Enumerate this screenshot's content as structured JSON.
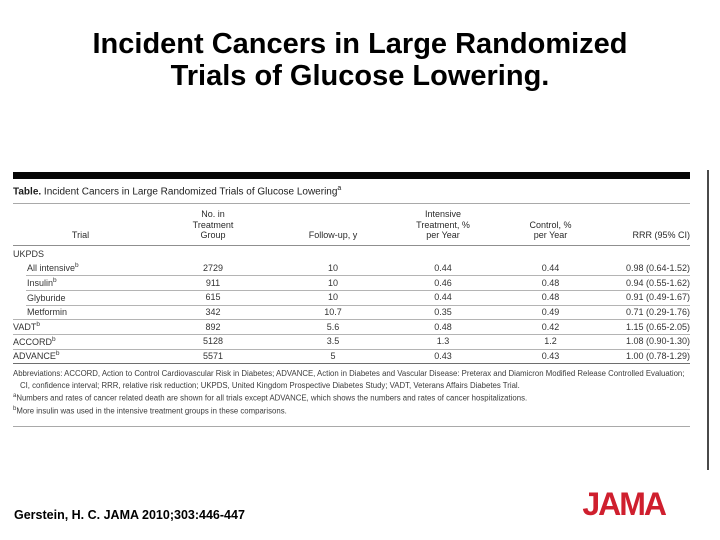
{
  "slide": {
    "title": "Incident Cancers in Large Randomized\nTrials of Glucose Lowering.",
    "citation": "Gerstein, H. C. JAMA 2010;303:446-447",
    "logo_text": "JAMA",
    "logo_color": "#cf1f2e"
  },
  "table": {
    "caption_label": "Table.",
    "caption_text": " Incident Cancers in Large Randomized Trials of Glucose Lowering",
    "caption_sup": "a",
    "columns": [
      "Trial",
      "No. in\nTreatment\nGroup",
      "Follow-up, y",
      "Intensive\nTreatment, %\nper Year",
      "Control, %\nper Year",
      "RRR (95% CI)"
    ],
    "rows": [
      {
        "trial": "UKPDS",
        "sup": "",
        "n": "",
        "followup": "",
        "intensive": "",
        "control": "",
        "rrr": ""
      },
      {
        "trial": "All intensive",
        "sup": "b",
        "n": "2729",
        "followup": "10",
        "intensive": "0.44",
        "control": "0.44",
        "rrr": "0.98 (0.64-1.52)"
      },
      {
        "trial": "Insulin",
        "sup": "b",
        "n": "911",
        "followup": "10",
        "intensive": "0.46",
        "control": "0.48",
        "rrr": "0.94 (0.55-1.62)"
      },
      {
        "trial": "Glyburide",
        "sup": "",
        "n": "615",
        "followup": "10",
        "intensive": "0.44",
        "control": "0.48",
        "rrr": "0.91 (0.49-1.67)"
      },
      {
        "trial": "Metformin",
        "sup": "",
        "n": "342",
        "followup": "10.7",
        "intensive": "0.35",
        "control": "0.49",
        "rrr": "0.71 (0.29-1.76)"
      },
      {
        "trial": "VADT",
        "sup": "b",
        "n": "892",
        "followup": "5.6",
        "intensive": "0.48",
        "control": "0.42",
        "rrr": "1.15 (0.65-2.05)"
      },
      {
        "trial": "ACCORD",
        "sup": "b",
        "n": "5128",
        "followup": "3.5",
        "intensive": "1.3",
        "control": "1.2",
        "rrr": "1.08 (0.90-1.30)"
      },
      {
        "trial": "ADVANCE",
        "sup": "b",
        "n": "5571",
        "followup": "5",
        "intensive": "0.43",
        "control": "0.43",
        "rrr": "1.00 (0.78-1.29)"
      }
    ],
    "footnotes": {
      "abbrev": "Abbreviations: ACCORD, Action to Control Cardiovascular Risk in Diabetes; ADVANCE, Action in Diabetes and Vascular Disease: Preterax and Diamicron Modified Release Controlled Evaluation; CI, confidence interval; RRR, relative risk reduction; UKPDS, United Kingdom Prospective Diabetes Study; VADT, Veterans Affairs Diabetes Trial.",
      "note_a_sup": "a",
      "note_a": "Numbers and rates of cancer related death are shown for all trials except ADVANCE, which shows the numbers and rates of cancer hospitalizations.",
      "note_b_sup": "b",
      "note_b": "More insulin was used in the intensive treatment groups in these comparisons."
    }
  }
}
